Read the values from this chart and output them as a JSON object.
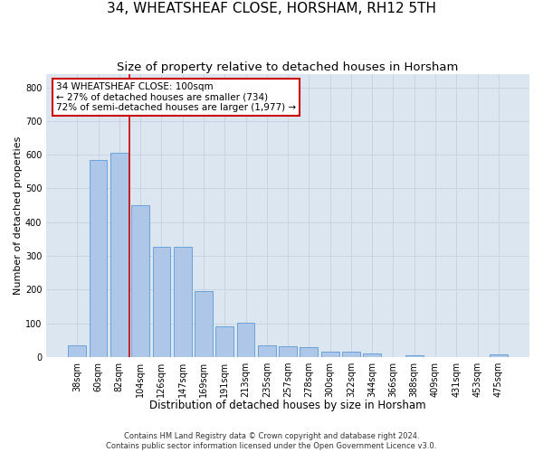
{
  "title": "34, WHEATSHEAF CLOSE, HORSHAM, RH12 5TH",
  "subtitle": "Size of property relative to detached houses in Horsham",
  "xlabel": "Distribution of detached houses by size in Horsham",
  "ylabel": "Number of detached properties",
  "categories": [
    "38sqm",
    "60sqm",
    "82sqm",
    "104sqm",
    "126sqm",
    "147sqm",
    "169sqm",
    "191sqm",
    "213sqm",
    "235sqm",
    "257sqm",
    "278sqm",
    "300sqm",
    "322sqm",
    "344sqm",
    "366sqm",
    "388sqm",
    "409sqm",
    "431sqm",
    "453sqm",
    "475sqm"
  ],
  "values": [
    35,
    585,
    605,
    450,
    328,
    328,
    195,
    90,
    102,
    35,
    33,
    30,
    17,
    15,
    11,
    0,
    5,
    0,
    0,
    0,
    7
  ],
  "bar_color": "#aec6e8",
  "bar_edgecolor": "#5b9bd5",
  "vline_color": "#cc0000",
  "vline_x_index": 2.5,
  "annotation_text": "34 WHEATSHEAF CLOSE: 100sqm\n← 27% of detached houses are smaller (734)\n72% of semi-detached houses are larger (1,977) →",
  "annotation_box_edgecolor": "#cc0000",
  "annotation_box_facecolor": "#ffffff",
  "footer_text": "Contains HM Land Registry data © Crown copyright and database right 2024.\nContains public sector information licensed under the Open Government Licence v3.0.",
  "ylim": [
    0,
    840
  ],
  "yticks": [
    0,
    100,
    200,
    300,
    400,
    500,
    600,
    700,
    800
  ],
  "grid_color": "#c8d4e3",
  "bg_color": "#dce6f0",
  "title_fontsize": 11,
  "subtitle_fontsize": 9.5,
  "tick_fontsize": 7,
  "xlabel_fontsize": 8.5,
  "ylabel_fontsize": 8,
  "footer_fontsize": 6,
  "annotation_fontsize": 7.5
}
